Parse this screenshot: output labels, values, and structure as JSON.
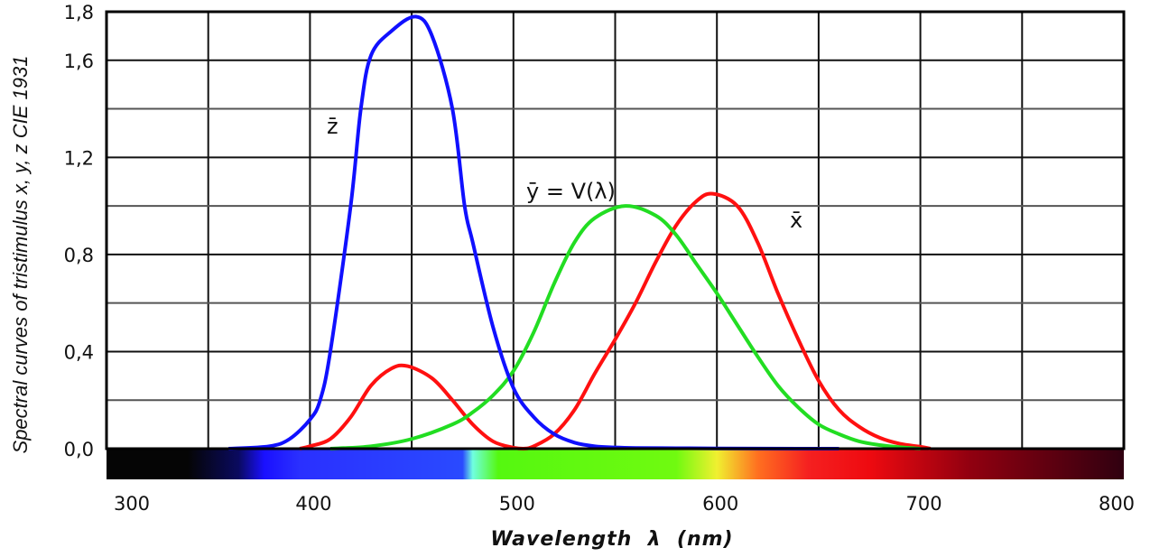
{
  "chart_data": {
    "type": "line",
    "title": "",
    "xlabel": "Wavelength  λ  (nm)",
    "ylabel": "Spectral curves of tristimulus x, y, z CIE 1931",
    "xlim": [
      300,
      800
    ],
    "ylim": [
      0,
      1.8
    ],
    "x_ticks": [
      300,
      400,
      500,
      600,
      700,
      800
    ],
    "x_tick_labels": [
      "300",
      "400",
      "500",
      "600",
      "700",
      "800"
    ],
    "y_ticks": [
      0,
      0.4,
      0.8,
      1.2,
      1.6,
      1.8
    ],
    "y_tick_labels": [
      "0,0",
      "0,4",
      "0,8",
      "1,2",
      "1,6",
      "1,8"
    ],
    "grid": true,
    "grid_x_step": 50,
    "grid_y_step": 0.2,
    "legend": "none",
    "spectrum_bar": true,
    "series": [
      {
        "name": "x̄",
        "color": "#ff1010",
        "x": [
          395,
          400,
          410,
          420,
          430,
          440,
          448,
          460,
          470,
          480,
          490,
          500,
          505,
          510,
          520,
          530,
          540,
          550,
          560,
          570,
          580,
          590,
          598,
          610,
          620,
          630,
          640,
          650,
          660,
          670,
          680,
          690,
          700,
          705
        ],
        "y": [
          0.0,
          0.01,
          0.04,
          0.13,
          0.26,
          0.33,
          0.34,
          0.29,
          0.2,
          0.1,
          0.03,
          0.004,
          0.0,
          0.01,
          0.06,
          0.16,
          0.31,
          0.45,
          0.6,
          0.77,
          0.92,
          1.02,
          1.05,
          1.0,
          0.85,
          0.64,
          0.45,
          0.28,
          0.16,
          0.09,
          0.045,
          0.02,
          0.008,
          0.0
        ]
      },
      {
        "name": "ȳ = V(λ)",
        "color": "#22dd22",
        "x": [
          410,
          430,
          450,
          470,
          480,
          490,
          500,
          510,
          520,
          530,
          540,
          555,
          570,
          580,
          590,
          600,
          610,
          620,
          630,
          640,
          650,
          660,
          670,
          680,
          690,
          700
        ],
        "y": [
          0.0,
          0.01,
          0.04,
          0.1,
          0.15,
          0.22,
          0.32,
          0.48,
          0.68,
          0.85,
          0.95,
          1.0,
          0.96,
          0.88,
          0.76,
          0.64,
          0.51,
          0.38,
          0.26,
          0.17,
          0.1,
          0.06,
          0.03,
          0.015,
          0.006,
          0.0
        ]
      },
      {
        "name": "z̄",
        "color": "#1010ff",
        "x": [
          360,
          380,
          390,
          400,
          405,
          410,
          420,
          425,
          430,
          440,
          452,
          460,
          470,
          476,
          480,
          490,
          500,
          510,
          520,
          530,
          540,
          550,
          560,
          580,
          600,
          640,
          660
        ],
        "y": [
          0.0,
          0.01,
          0.04,
          0.12,
          0.2,
          0.4,
          1.0,
          1.4,
          1.62,
          1.72,
          1.78,
          1.7,
          1.4,
          1.0,
          0.85,
          0.5,
          0.25,
          0.13,
          0.06,
          0.025,
          0.01,
          0.005,
          0.003,
          0.002,
          0.001,
          0.0,
          0.0
        ]
      }
    ],
    "annotations": [
      {
        "text": "z̄",
        "series": "z̄"
      },
      {
        "text": "ȳ = V(λ)",
        "series": "ȳ = V(λ)"
      },
      {
        "text": "x̄",
        "series": "x̄"
      }
    ]
  }
}
